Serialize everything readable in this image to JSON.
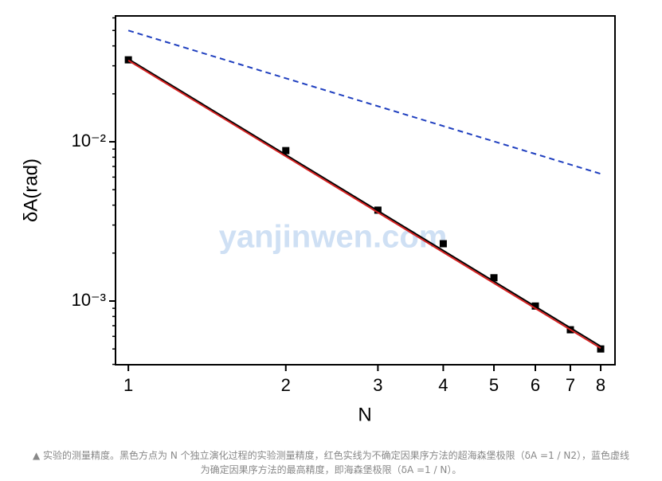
{
  "chart_data": {
    "type": "line",
    "x_label": "N",
    "y_label": "δA(rad)",
    "log_x": true,
    "log_y": true,
    "xlim": [
      0.945,
      8.52
    ],
    "xticks": [
      1,
      2,
      3,
      4,
      5,
      6,
      7,
      8
    ],
    "ylim": [
      0.000398,
      0.0617
    ],
    "yticks": [
      {
        "value": 0.01,
        "label": "10⁻²"
      },
      {
        "value": 0.001,
        "label": "10⁻³"
      }
    ],
    "series": [
      {
        "color": "#000000",
        "marker": "square",
        "x": [
          1,
          2,
          3,
          4,
          5,
          6,
          7,
          8
        ],
        "values": [
          0.0327,
          0.0088,
          0.00372,
          0.00229,
          0.0014,
          0.00093,
          0.00066,
          0.0005
        ]
      },
      {
        "color": "#000000",
        "x": [
          1,
          8
        ],
        "values": [
          0.0331,
          0.00052
        ]
      },
      {
        "color": "#d42020",
        "x": [
          1,
          8
        ],
        "values": [
          0.0324,
          0.000506
        ]
      },
      {
        "color": "#1f3fbf",
        "dash": true,
        "x": [
          1,
          8
        ],
        "values": [
          0.05,
          0.0063
        ]
      }
    ]
  },
  "watermark": "yanjinwen.com",
  "caption": [
    "▲ 实验的测量精度。黑色方点为 N 个独立演化过程的实验测量精度，红色实线为不确定因果序方法的超海森堡极限（δA =1 / N2），蓝色虚线",
    "为确定因果序方法的最高精度，即海森堡极限（δA =1 / N）。"
  ]
}
